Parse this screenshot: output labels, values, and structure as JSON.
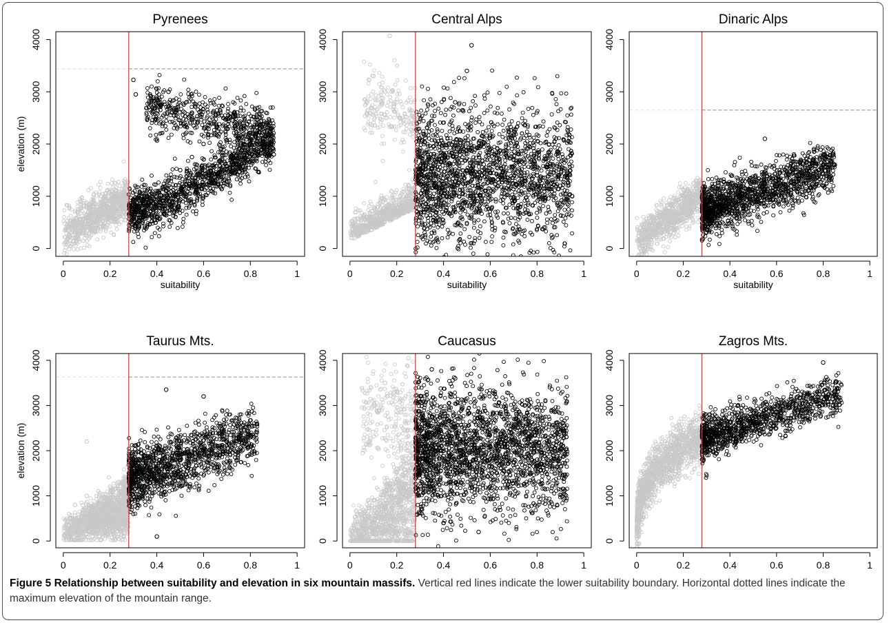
{
  "caption": {
    "label": "Figure 5",
    "title": "Relationship between suitability and elevation in six mountain massifs.",
    "text": "Vertical red lines indicate the lower suitability boundary. Horizontal dotted lines indicate the maximum elevation of the mountain range."
  },
  "colors": {
    "selected_points": "#000000",
    "excluded_points": "#c8c8c8",
    "threshold_line": "#e8343a",
    "max_elevation_line": "#888888"
  },
  "chart_data": [
    {
      "type": "scatter",
      "title": "Pyrenees",
      "xlabel": "suitability",
      "ylabel": "elevation (m)",
      "xlim": [
        0,
        1
      ],
      "ylim": [
        0,
        4000
      ],
      "xticks": [
        "0",
        "0.2",
        "0.4",
        "0.6",
        "0.8",
        "1"
      ],
      "yticks": [
        "0",
        "1000",
        "2000",
        "3000",
        "4000"
      ],
      "threshold_x": 0.28,
      "max_elevation": 3440,
      "series": [
        {
          "values": [
            [
              0.02,
              350
            ],
            [
              0.05,
              420
            ],
            [
              0.1,
              600
            ],
            [
              0.15,
              750
            ],
            [
              0.2,
              900
            ],
            [
              0.25,
              1050
            ],
            [
              0.27,
              1150
            ]
          ],
          "style": "excluded"
        },
        {
          "values": [
            [
              0.3,
              3230
            ],
            [
              0.31,
              2950
            ],
            [
              0.35,
              700
            ],
            [
              0.4,
              1000
            ],
            [
              0.45,
              1300
            ],
            [
              0.5,
              1500
            ],
            [
              0.55,
              1750
            ],
            [
              0.6,
              2000
            ],
            [
              0.65,
              2200
            ],
            [
              0.7,
              2300
            ],
            [
              0.75,
              2100
            ],
            [
              0.8,
              2000
            ],
            [
              0.85,
              1900
            ],
            [
              0.9,
              1800
            ],
            [
              0.55,
              2600
            ],
            [
              0.45,
              3000
            ],
            [
              0.65,
              1300
            ],
            [
              0.75,
              1550
            ]
          ],
          "style": "selected"
        }
      ]
    },
    {
      "type": "scatter",
      "title": "Central Alps",
      "xlabel": "suitability",
      "ylabel": "",
      "xlim": [
        0,
        1
      ],
      "ylim": [
        0,
        4000
      ],
      "xticks": [
        "0",
        "0.2",
        "0.4",
        "0.6",
        "0.8",
        "1"
      ],
      "yticks": [
        "0",
        "1000",
        "2000",
        "3000",
        "4000"
      ],
      "threshold_x": 0.28,
      "max_elevation": null,
      "series": [
        {
          "values": [
            [
              0.02,
              200
            ],
            [
              0.05,
              300
            ],
            [
              0.1,
              450
            ],
            [
              0.2,
              700
            ],
            [
              0.25,
              900
            ],
            [
              0.1,
              3300
            ],
            [
              0.15,
              3000
            ],
            [
              0.2,
              2800
            ],
            [
              0.17,
              4070
            ]
          ],
          "style": "excluded"
        },
        {
          "values": [
            [
              0.3,
              600
            ],
            [
              0.4,
              1000
            ],
            [
              0.5,
              1500
            ],
            [
              0.6,
              1700
            ],
            [
              0.7,
              1700
            ],
            [
              0.8,
              1400
            ],
            [
              0.9,
              1200
            ],
            [
              0.95,
              1000
            ],
            [
              0.52,
              3890
            ],
            [
              0.5,
              3400
            ],
            [
              0.45,
              2800
            ],
            [
              0.35,
              300
            ]
          ],
          "style": "selected"
        }
      ]
    },
    {
      "type": "scatter",
      "title": "Dinaric Alps",
      "xlabel": "suitability",
      "ylabel": "",
      "xlim": [
        0,
        1
      ],
      "ylim": [
        0,
        4000
      ],
      "xticks": [
        "0",
        "0.2",
        "0.4",
        "0.6",
        "0.8",
        "1"
      ],
      "yticks": [
        "0",
        "1000",
        "2000",
        "3000",
        "4000"
      ],
      "threshold_x": 0.28,
      "max_elevation": 2650,
      "series": [
        {
          "values": [
            [
              0.02,
              150
            ],
            [
              0.05,
              250
            ],
            [
              0.1,
              400
            ],
            [
              0.15,
              600
            ],
            [
              0.2,
              800
            ],
            [
              0.25,
              1000
            ],
            [
              0.27,
              1100
            ]
          ],
          "style": "excluded"
        },
        {
          "values": [
            [
              0.3,
              700
            ],
            [
              0.35,
              800
            ],
            [
              0.4,
              900
            ],
            [
              0.45,
              1000
            ],
            [
              0.5,
              1150
            ],
            [
              0.55,
              1250
            ],
            [
              0.6,
              1350
            ],
            [
              0.65,
              1400
            ],
            [
              0.7,
              1500
            ],
            [
              0.75,
              1550
            ],
            [
              0.8,
              1600
            ],
            [
              0.85,
              1600
            ],
            [
              0.55,
              2100
            ]
          ],
          "style": "selected"
        }
      ]
    },
    {
      "type": "scatter",
      "title": "Taurus Mts.",
      "xlabel": "suitability",
      "ylabel": "elevation (m)",
      "xlim": [
        0,
        1
      ],
      "ylim": [
        0,
        4000
      ],
      "xticks": [
        "0",
        "0.2",
        "0.4",
        "0.6",
        "0.8",
        "1"
      ],
      "yticks": [
        "0",
        "1000",
        "2000",
        "3000",
        "4000"
      ],
      "threshold_x": 0.28,
      "max_elevation": 3630,
      "series": [
        {
          "values": [
            [
              0.01,
              100
            ],
            [
              0.03,
              500
            ],
            [
              0.05,
              800
            ],
            [
              0.1,
              1000
            ],
            [
              0.15,
              1100
            ],
            [
              0.2,
              1200
            ],
            [
              0.25,
              1300
            ],
            [
              0.1,
              2200
            ]
          ],
          "style": "excluded"
        },
        {
          "values": [
            [
              0.3,
              1300
            ],
            [
              0.35,
              1450
            ],
            [
              0.4,
              1600
            ],
            [
              0.45,
              1700
            ],
            [
              0.5,
              1800
            ],
            [
              0.55,
              1900
            ],
            [
              0.6,
              2000
            ],
            [
              0.65,
              2100
            ],
            [
              0.7,
              2200
            ],
            [
              0.75,
              2250
            ],
            [
              0.8,
              2300
            ],
            [
              0.44,
              3350
            ],
            [
              0.6,
              3200
            ],
            [
              0.4,
              100
            ]
          ],
          "style": "selected"
        }
      ]
    },
    {
      "type": "scatter",
      "title": "Caucasus",
      "xlabel": "suitability",
      "ylabel": "",
      "xlim": [
        0,
        1
      ],
      "ylim": [
        0,
        4000
      ],
      "xticks": [
        "0",
        "0.2",
        "0.4",
        "0.6",
        "0.8",
        "1"
      ],
      "yticks": [
        "0",
        "1000",
        "2000",
        "3000",
        "4000"
      ],
      "threshold_x": 0.28,
      "max_elevation": null,
      "series": [
        {
          "values": [
            [
              0.01,
              200
            ],
            [
              0.05,
              500
            ],
            [
              0.1,
              900
            ],
            [
              0.15,
              1300
            ],
            [
              0.2,
              1600
            ],
            [
              0.25,
              2000
            ],
            [
              0.1,
              3000
            ],
            [
              0.15,
              3500
            ],
            [
              0.25,
              4050
            ]
          ],
          "style": "excluded"
        },
        {
          "values": [
            [
              0.3,
              1500
            ],
            [
              0.4,
              2000
            ],
            [
              0.5,
              2200
            ],
            [
              0.6,
              2100
            ],
            [
              0.7,
              2000
            ],
            [
              0.8,
              1800
            ],
            [
              0.9,
              1500
            ],
            [
              0.35,
              3800
            ],
            [
              0.45,
              3600
            ],
            [
              0.4,
              400
            ],
            [
              0.55,
              200
            ]
          ],
          "style": "selected"
        }
      ]
    },
    {
      "type": "scatter",
      "title": "Zagros Mts.",
      "xlabel": "suitability",
      "ylabel": "",
      "xlim": [
        0,
        1
      ],
      "ylim": [
        0,
        4000
      ],
      "xticks": [
        "0",
        "0.2",
        "0.4",
        "0.6",
        "0.8",
        "1"
      ],
      "yticks": [
        "0",
        "1000",
        "2000",
        "3000",
        "4000"
      ],
      "threshold_x": 0.28,
      "max_elevation": null,
      "series": [
        {
          "values": [
            [
              0.0,
              100
            ],
            [
              0.01,
              800
            ],
            [
              0.02,
              1300
            ],
            [
              0.05,
              1700
            ],
            [
              0.1,
              2000
            ],
            [
              0.15,
              2200
            ],
            [
              0.2,
              2400
            ],
            [
              0.25,
              2500
            ]
          ],
          "style": "excluded"
        },
        {
          "values": [
            [
              0.3,
              2200
            ],
            [
              0.35,
              2350
            ],
            [
              0.4,
              2450
            ],
            [
              0.45,
              2550
            ],
            [
              0.5,
              2650
            ],
            [
              0.55,
              2750
            ],
            [
              0.6,
              2850
            ],
            [
              0.65,
              2950
            ],
            [
              0.7,
              3050
            ],
            [
              0.75,
              3150
            ],
            [
              0.8,
              3250
            ],
            [
              0.85,
              3300
            ],
            [
              0.8,
              3950
            ]
          ],
          "style": "selected"
        }
      ]
    }
  ]
}
